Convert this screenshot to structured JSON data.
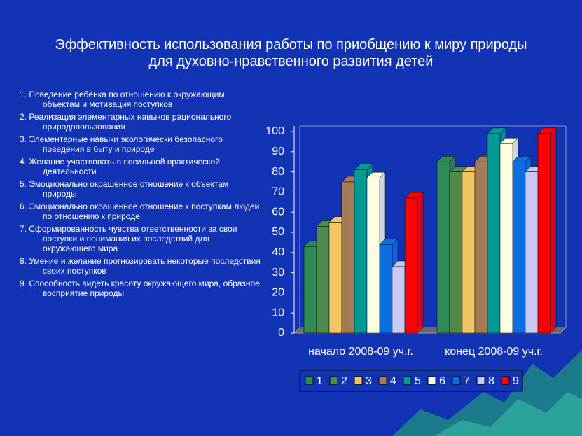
{
  "chart_data": {
    "type": "bar3d",
    "title": "Эффективность использования работы по приобщению к миру природы для духовно-нравственного развития детей",
    "categories": [
      "начало 2008-09 уч.г.",
      "конец 2008-09 уч.г."
    ],
    "series": [
      {
        "name": "1",
        "color": "#2e8b57",
        "values": [
          43,
          85
        ]
      },
      {
        "name": "2",
        "color": "#4f8a4a",
        "values": [
          53,
          80
        ]
      },
      {
        "name": "3",
        "color": "#f2c462",
        "values": [
          55,
          80
        ]
      },
      {
        "name": "4",
        "color": "#a47b55",
        "values": [
          75,
          85
        ]
      },
      {
        "name": "5",
        "color": "#009a94",
        "values": [
          81,
          99
        ]
      },
      {
        "name": "6",
        "color": "#ffffe0",
        "values": [
          77,
          94
        ]
      },
      {
        "name": "7",
        "color": "#0a6fe0",
        "values": [
          44,
          85
        ]
      },
      {
        "name": "8",
        "color": "#c8c8f4",
        "values": [
          33,
          80
        ]
      },
      {
        "name": "9",
        "color": "#ff0000",
        "values": [
          67,
          99
        ]
      }
    ],
    "ylim": [
      0,
      100
    ],
    "yticks": [
      0,
      10,
      20,
      30,
      40,
      50,
      60,
      70,
      80,
      90,
      100
    ]
  },
  "list": [
    "1. Поведение ребёнка по отношению к окружающим объектам и мотивация поступков",
    "2. Реализация элементарных навыков рационального природопользования",
    "3. Элементарные навыки экологически безопасного поведения в быту и природе",
    "4. Желание участвовать в посильной практической деятельности",
    "5. Эмоционально окрашенное отношение к объектам природы",
    "6. Эмоционально окрашенное отношение к поступкам людей по отношению к природе",
    "7. Сформированность чувства ответственности за свои поступки и понимания их последствий для окружающего мира",
    "8. Умение и желание прогнозировать некоторые последствия своих поступков",
    "9. Способность видеть красоту окружающего мира, образное восприятие природы"
  ]
}
